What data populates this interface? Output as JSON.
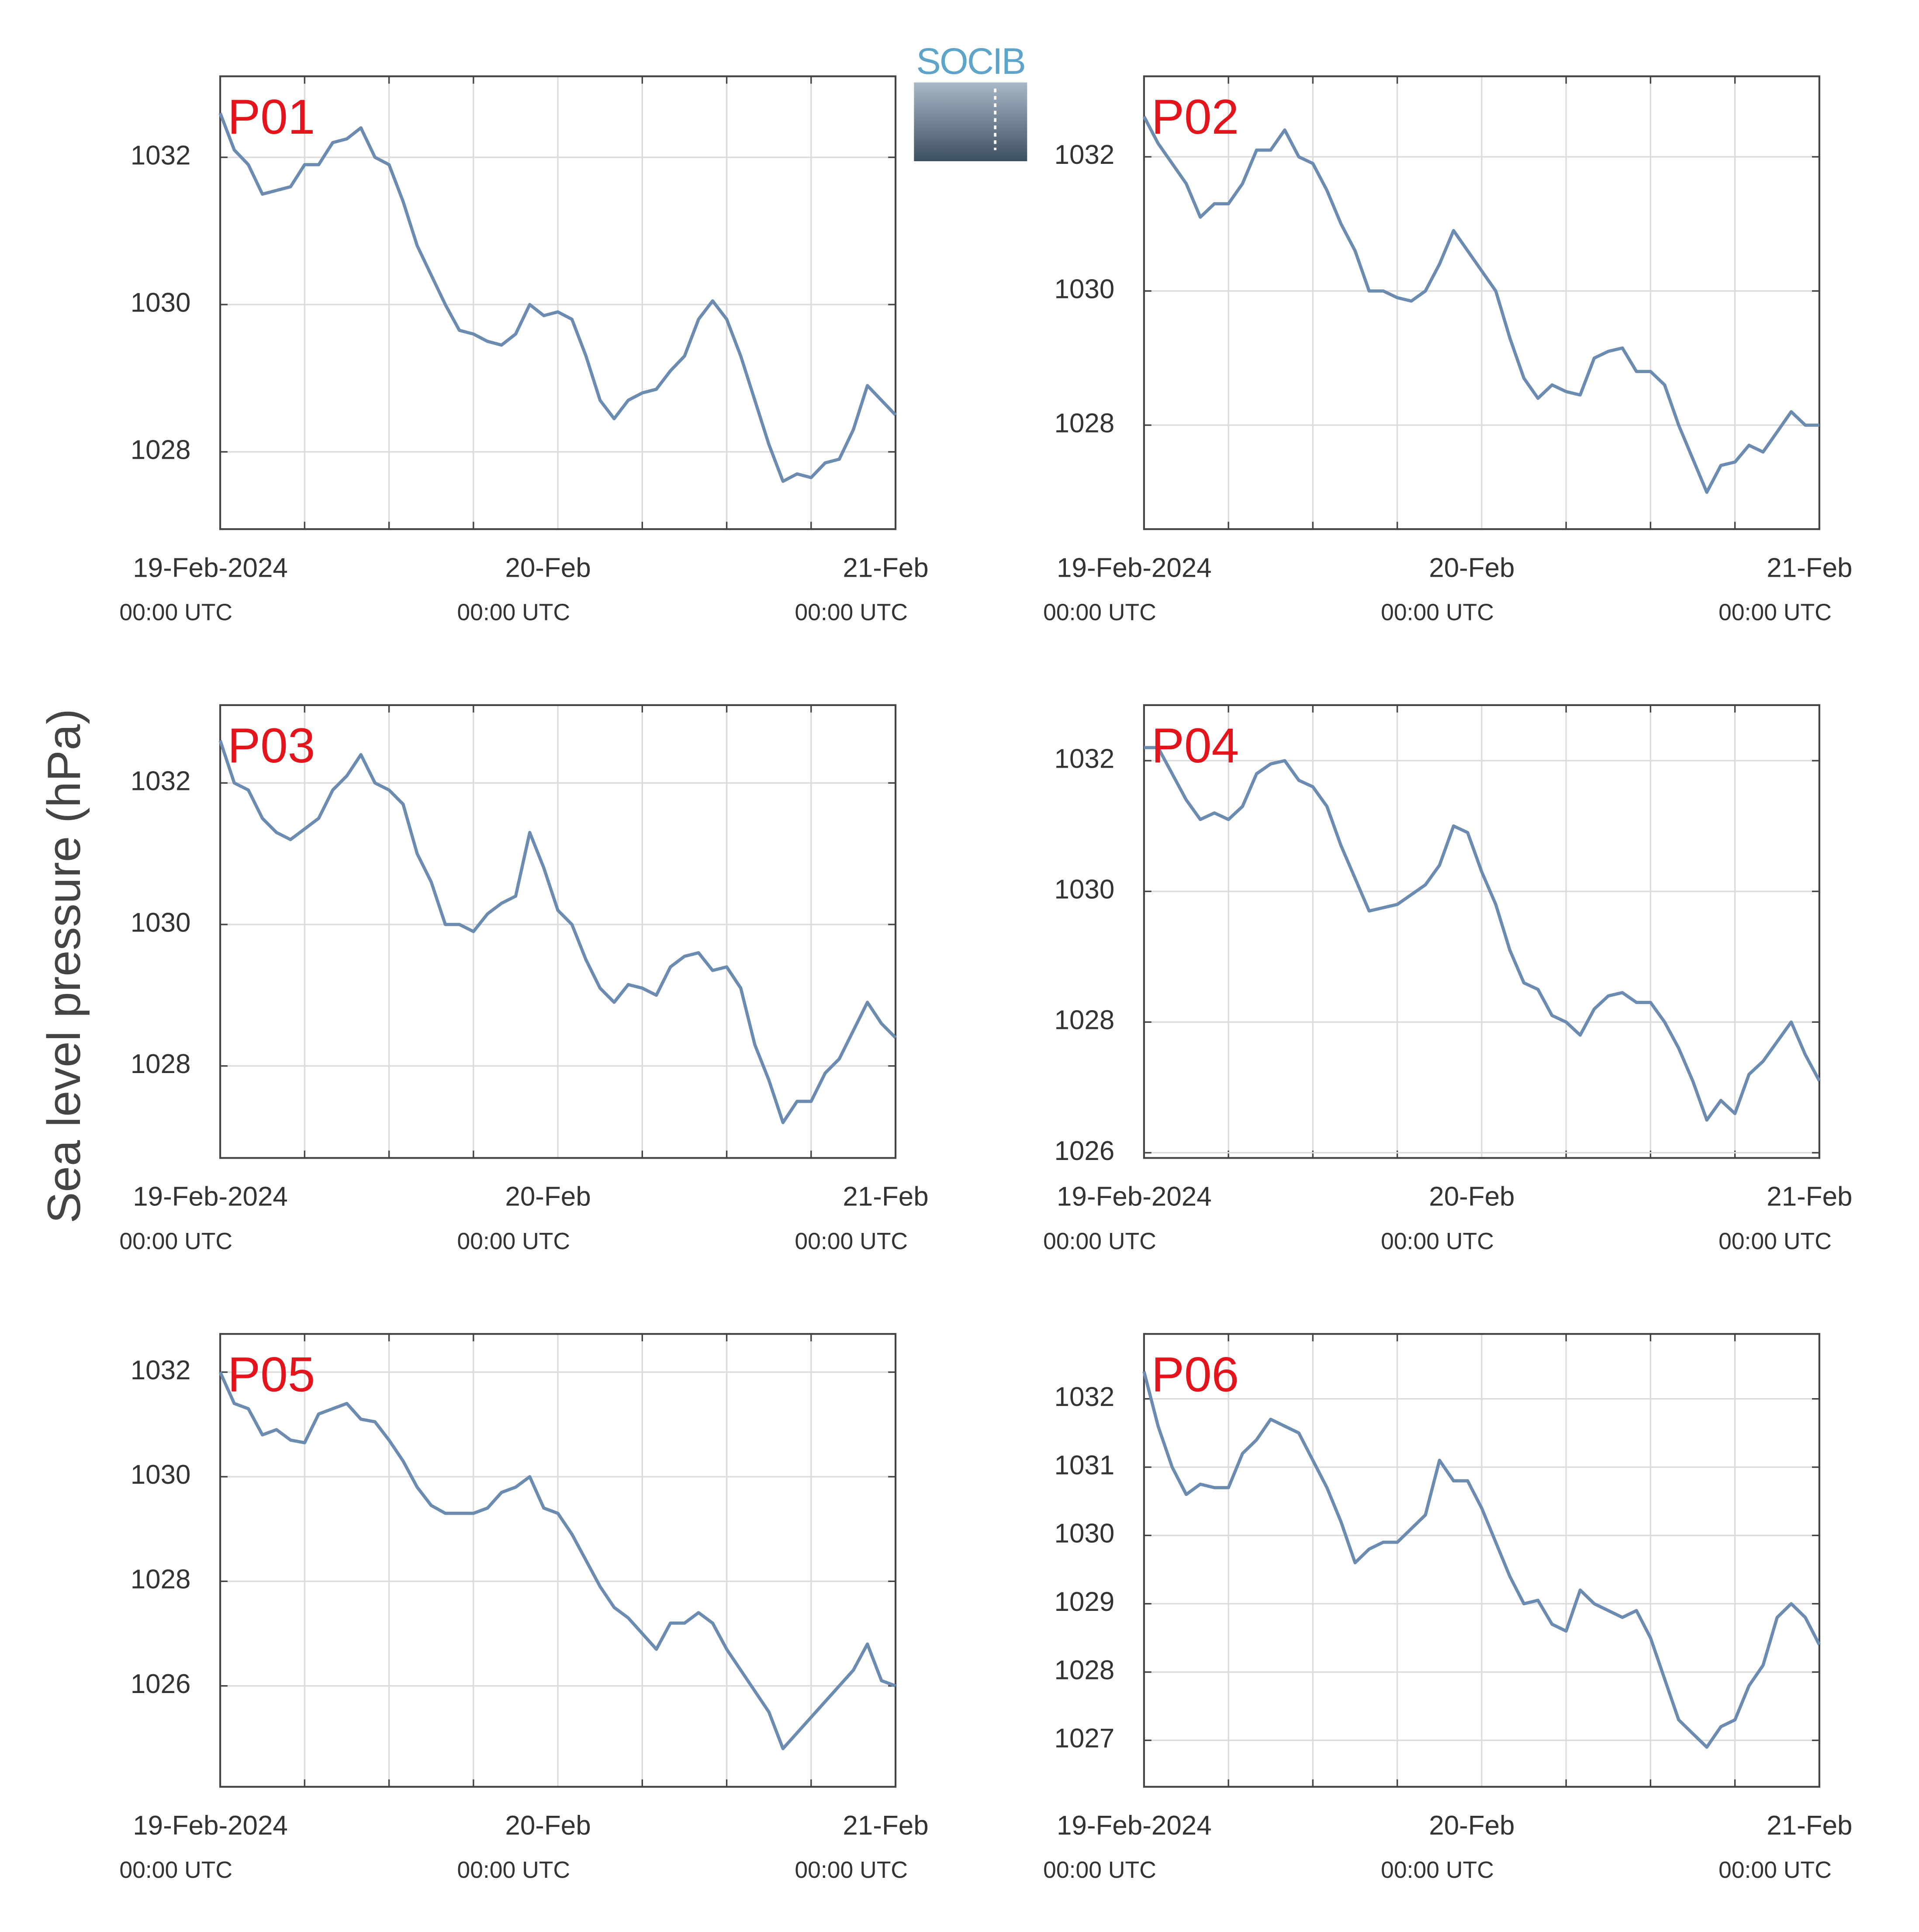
{
  "ylabel": "Sea level pressure (hPa)",
  "logo": "SOCIB",
  "chart_data": [
    {
      "type": "line",
      "title": "P01",
      "color": "#6b8bb0",
      "grid": true,
      "xlim": [
        0,
        48
      ],
      "ylim": [
        1026.95,
        1033.1
      ],
      "yticks": [
        1028,
        1030,
        1032
      ],
      "xticks": [
        {
          "value": 0,
          "label": "19-Feb-2024"
        },
        {
          "value": 24,
          "label": "20-Feb"
        },
        {
          "value": 48,
          "label": "21-Feb"
        }
      ],
      "xtick_sublabels": [
        "00:00 UTC",
        "00:00 UTC",
        "00:00 UTC"
      ],
      "x_minor_ticks": [
        6,
        12,
        18,
        30,
        36,
        42
      ],
      "x": [
        0,
        1,
        2,
        3,
        4,
        5,
        6,
        7,
        8,
        9,
        10,
        11,
        12,
        13,
        14,
        15,
        16,
        17,
        18,
        19,
        20,
        21,
        22,
        23,
        24,
        25,
        26,
        27,
        28,
        29,
        30,
        31,
        32,
        33,
        34,
        35,
        36,
        37,
        38,
        39,
        40,
        41,
        42,
        43,
        44,
        45,
        46,
        47,
        48
      ],
      "values": [
        1032.6,
        1032.1,
        1031.9,
        1031.5,
        1031.55,
        1031.6,
        1031.9,
        1031.9,
        1032.2,
        1032.25,
        1032.4,
        1032.0,
        1031.9,
        1031.4,
        1030.8,
        1030.4,
        1030.0,
        1029.65,
        1029.6,
        1029.5,
        1029.45,
        1029.6,
        1030.0,
        1029.85,
        1029.9,
        1029.8,
        1029.3,
        1028.7,
        1028.45,
        1028.7,
        1028.8,
        1028.85,
        1029.1,
        1029.3,
        1029.8,
        1030.05,
        1029.8,
        1029.3,
        1028.7,
        1028.1,
        1027.6,
        1027.7,
        1027.65,
        1027.85,
        1027.9,
        1028.3,
        1028.9,
        1028.7,
        1028.5
      ]
    },
    {
      "type": "line",
      "title": "P02",
      "color": "#6b8bb0",
      "grid": true,
      "xlim": [
        0,
        48
      ],
      "ylim": [
        1026.45,
        1033.2
      ],
      "yticks": [
        1028,
        1030,
        1032
      ],
      "xticks": [
        {
          "value": 0,
          "label": "19-Feb-2024"
        },
        {
          "value": 24,
          "label": "20-Feb"
        },
        {
          "value": 48,
          "label": "21-Feb"
        }
      ],
      "xtick_sublabels": [
        "00:00 UTC",
        "00:00 UTC",
        "00:00 UTC"
      ],
      "x_minor_ticks": [
        6,
        12,
        18,
        30,
        36,
        42
      ],
      "x": [
        0,
        1,
        2,
        3,
        4,
        5,
        6,
        7,
        8,
        9,
        10,
        11,
        12,
        13,
        14,
        15,
        16,
        17,
        18,
        19,
        20,
        21,
        22,
        23,
        24,
        25,
        26,
        27,
        28,
        29,
        30,
        31,
        32,
        33,
        34,
        35,
        36,
        37,
        38,
        39,
        40,
        41,
        42,
        43,
        44,
        45,
        46,
        47,
        48
      ],
      "values": [
        1032.6,
        1032.2,
        1031.9,
        1031.6,
        1031.1,
        1031.3,
        1031.3,
        1031.6,
        1032.1,
        1032.1,
        1032.4,
        1032.0,
        1031.9,
        1031.5,
        1031.0,
        1030.6,
        1030.0,
        1030.0,
        1029.9,
        1029.85,
        1030.0,
        1030.4,
        1030.9,
        1030.6,
        1030.3,
        1030.0,
        1029.3,
        1028.7,
        1028.4,
        1028.6,
        1028.5,
        1028.45,
        1029.0,
        1029.1,
        1029.15,
        1028.8,
        1028.8,
        1028.6,
        1028.0,
        1027.5,
        1027.0,
        1027.4,
        1027.45,
        1027.7,
        1027.6,
        1027.9,
        1028.2,
        1028.0,
        1028.0
      ]
    },
    {
      "type": "line",
      "title": "P03",
      "color": "#6b8bb0",
      "grid": true,
      "xlim": [
        0,
        48
      ],
      "ylim": [
        1026.7,
        1033.1
      ],
      "yticks": [
        1028,
        1030,
        1032
      ],
      "xticks": [
        {
          "value": 0,
          "label": "19-Feb-2024"
        },
        {
          "value": 24,
          "label": "20-Feb"
        },
        {
          "value": 48,
          "label": "21-Feb"
        }
      ],
      "xtick_sublabels": [
        "00:00 UTC",
        "00:00 UTC",
        "00:00 UTC"
      ],
      "x_minor_ticks": [
        6,
        12,
        18,
        30,
        36,
        42
      ],
      "x": [
        0,
        1,
        2,
        3,
        4,
        5,
        6,
        7,
        8,
        9,
        10,
        11,
        12,
        13,
        14,
        15,
        16,
        17,
        18,
        19,
        20,
        21,
        22,
        23,
        24,
        25,
        26,
        27,
        28,
        29,
        30,
        31,
        32,
        33,
        34,
        35,
        36,
        37,
        38,
        39,
        40,
        41,
        42,
        43,
        44,
        45,
        46,
        47,
        48
      ],
      "values": [
        1032.6,
        1032.0,
        1031.9,
        1031.5,
        1031.3,
        1031.2,
        1031.35,
        1031.5,
        1031.9,
        1032.1,
        1032.4,
        1032.0,
        1031.9,
        1031.7,
        1031.0,
        1030.6,
        1030.0,
        1030.0,
        1029.9,
        1030.15,
        1030.3,
        1030.4,
        1031.3,
        1030.8,
        1030.2,
        1030.0,
        1029.5,
        1029.1,
        1028.9,
        1029.15,
        1029.1,
        1029.0,
        1029.4,
        1029.55,
        1029.6,
        1029.35,
        1029.4,
        1029.1,
        1028.3,
        1027.8,
        1027.2,
        1027.5,
        1027.5,
        1027.9,
        1028.1,
        1028.5,
        1028.9,
        1028.6,
        1028.4
      ]
    },
    {
      "type": "line",
      "title": "P04",
      "color": "#6b8bb0",
      "grid": true,
      "xlim": [
        0,
        48
      ],
      "ylim": [
        1025.92,
        1032.85
      ],
      "yticks": [
        1026,
        1028,
        1030,
        1032
      ],
      "xticks": [
        {
          "value": 0,
          "label": "19-Feb-2024"
        },
        {
          "value": 24,
          "label": "20-Feb"
        },
        {
          "value": 48,
          "label": "21-Feb"
        }
      ],
      "xtick_sublabels": [
        "00:00 UTC",
        "00:00 UTC",
        "00:00 UTC"
      ],
      "x_minor_ticks": [
        6,
        12,
        18,
        30,
        36,
        42
      ],
      "x": [
        0,
        1,
        2,
        3,
        4,
        5,
        6,
        7,
        8,
        9,
        10,
        11,
        12,
        13,
        14,
        15,
        16,
        17,
        18,
        19,
        20,
        21,
        22,
        23,
        24,
        25,
        26,
        27,
        28,
        29,
        30,
        31,
        32,
        33,
        34,
        35,
        36,
        37,
        38,
        39,
        40,
        41,
        42,
        43,
        44,
        45,
        46,
        47,
        48
      ],
      "values": [
        1032.2,
        1032.2,
        1031.8,
        1031.4,
        1031.1,
        1031.2,
        1031.1,
        1031.3,
        1031.8,
        1031.95,
        1032.0,
        1031.7,
        1031.6,
        1031.3,
        1030.7,
        1030.2,
        1029.7,
        1029.75,
        1029.8,
        1029.95,
        1030.1,
        1030.4,
        1031.0,
        1030.9,
        1030.3,
        1029.8,
        1029.1,
        1028.6,
        1028.5,
        1028.1,
        1028.0,
        1027.8,
        1028.2,
        1028.4,
        1028.45,
        1028.3,
        1028.3,
        1028.0,
        1027.6,
        1027.1,
        1026.5,
        1026.8,
        1026.6,
        1027.2,
        1027.4,
        1027.7,
        1028.0,
        1027.5,
        1027.1
      ]
    },
    {
      "type": "line",
      "title": "P05",
      "color": "#6b8bb0",
      "grid": true,
      "xlim": [
        0,
        48
      ],
      "ylim": [
        1024.07,
        1032.73
      ],
      "yticks": [
        1026,
        1028,
        1030,
        1032
      ],
      "xticks": [
        {
          "value": 0,
          "label": "19-Feb-2024"
        },
        {
          "value": 24,
          "label": "20-Feb"
        },
        {
          "value": 48,
          "label": "21-Feb"
        }
      ],
      "xtick_sublabels": [
        "00:00 UTC",
        "00:00 UTC",
        "00:00 UTC"
      ],
      "x_minor_ticks": [
        6,
        12,
        18,
        30,
        36,
        42
      ],
      "x": [
        0,
        1,
        2,
        3,
        4,
        5,
        6,
        7,
        8,
        9,
        10,
        11,
        12,
        13,
        14,
        15,
        16,
        17,
        18,
        19,
        20,
        21,
        22,
        23,
        24,
        25,
        26,
        27,
        28,
        29,
        30,
        31,
        32,
        33,
        34,
        35,
        36,
        37,
        38,
        39,
        40,
        41,
        42,
        43,
        44,
        45,
        46,
        47,
        48
      ],
      "values": [
        1032.0,
        1031.4,
        1031.3,
        1030.8,
        1030.9,
        1030.7,
        1030.65,
        1031.2,
        1031.3,
        1031.4,
        1031.1,
        1031.05,
        1030.7,
        1030.3,
        1029.8,
        1029.45,
        1029.3,
        1029.3,
        1029.3,
        1029.4,
        1029.7,
        1029.8,
        1030.0,
        1029.4,
        1029.3,
        1028.9,
        1028.4,
        1027.9,
        1027.5,
        1027.3,
        1027.0,
        1026.7,
        1027.2,
        1027.2,
        1027.4,
        1027.2,
        1026.7,
        1026.3,
        1025.9,
        1025.5,
        1024.8,
        1025.1,
        1025.4,
        1025.7,
        1026.0,
        1026.3,
        1026.8,
        1026.1,
        1026.0
      ]
    },
    {
      "type": "line",
      "title": "P06",
      "color": "#6b8bb0",
      "grid": true,
      "xlim": [
        0,
        48
      ],
      "ylim": [
        1026.32,
        1032.95
      ],
      "yticks": [
        1027,
        1028,
        1029,
        1030,
        1031,
        1032
      ],
      "xticks": [
        {
          "value": 0,
          "label": "19-Feb-2024"
        },
        {
          "value": 24,
          "label": "20-Feb"
        },
        {
          "value": 48,
          "label": "21-Feb"
        }
      ],
      "xtick_sublabels": [
        "00:00 UTC",
        "00:00 UTC",
        "00:00 UTC"
      ],
      "x_minor_ticks": [
        6,
        12,
        18,
        30,
        36,
        42
      ],
      "x": [
        0,
        1,
        2,
        3,
        4,
        5,
        6,
        7,
        8,
        9,
        10,
        11,
        12,
        13,
        14,
        15,
        16,
        17,
        18,
        19,
        20,
        21,
        22,
        23,
        24,
        25,
        26,
        27,
        28,
        29,
        30,
        31,
        32,
        33,
        34,
        35,
        36,
        37,
        38,
        39,
        40,
        41,
        42,
        43,
        44,
        45,
        46,
        47,
        48
      ],
      "values": [
        1032.4,
        1031.6,
        1031.0,
        1030.6,
        1030.75,
        1030.7,
        1030.7,
        1031.2,
        1031.4,
        1031.7,
        1031.6,
        1031.5,
        1031.1,
        1030.7,
        1030.2,
        1029.6,
        1029.8,
        1029.9,
        1029.9,
        1030.1,
        1030.3,
        1031.1,
        1030.8,
        1030.8,
        1030.4,
        1029.9,
        1029.4,
        1029.0,
        1029.05,
        1028.7,
        1028.6,
        1029.2,
        1029.0,
        1028.9,
        1028.8,
        1028.9,
        1028.5,
        1027.9,
        1027.3,
        1027.1,
        1026.9,
        1027.2,
        1027.3,
        1027.8,
        1028.1,
        1028.8,
        1029.0,
        1028.8,
        1028.4
      ]
    }
  ]
}
